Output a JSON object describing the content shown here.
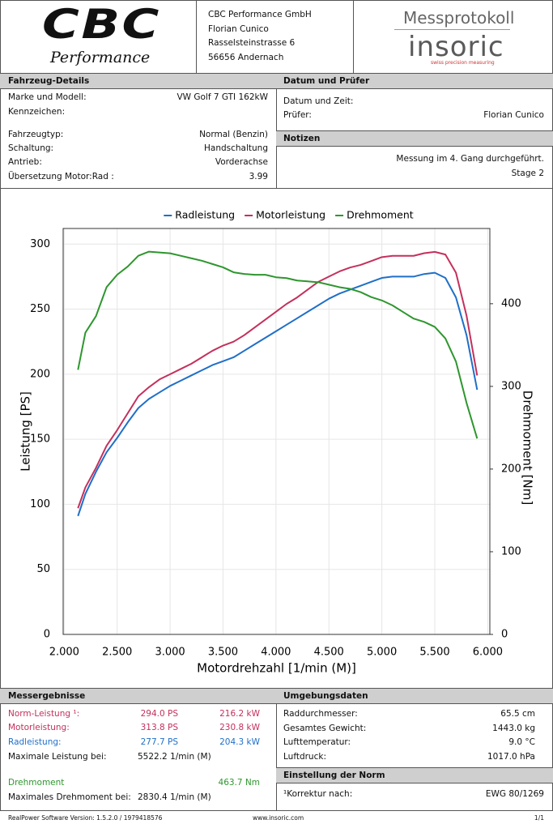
{
  "header": {
    "logo_main": "CBC",
    "logo_sub": "Performance",
    "address": [
      "CBC Performance GmbH",
      "Florian Cunico",
      "Rasselsteinstrasse 6",
      "56656 Andernach"
    ],
    "protocol_title": "Messprotokoll",
    "brand": "insoric",
    "brand_tagline": "swiss precision measuring"
  },
  "vehicle": {
    "title": "Fahrzeug-Details",
    "rows": [
      [
        "Marke und Modell:",
        "VW Golf 7 GTI 162kW"
      ],
      [
        "Kennzeichen:"
      ],
      [
        "Fahrzeugtyp:",
        "Normal (Benzin)"
      ],
      [
        "Schaltung:",
        "Handschaltung"
      ],
      [
        "Antrieb:",
        "Vorderachse"
      ],
      [
        "Übersetzung Motor:Rad :",
        "3.99"
      ]
    ]
  },
  "date": {
    "title": "Datum und Prüfer",
    "rows": [
      [
        "Datum und Zeit:"
      ],
      [
        "Prüfer:",
        "Florian Cunico"
      ]
    ]
  },
  "notes": {
    "title": "Notizen",
    "lines": [
      "Messung im 4. Gang durchgeführt.",
      "Stage 2"
    ]
  },
  "chart_data": {
    "type": "line",
    "x_label": "Motordrehzahl [1/min (M)]",
    "y_label": "Leistung [PS]",
    "y2_label": "Drehmoment [Nm]",
    "x": [
      2.13,
      2.2,
      2.3,
      2.4,
      2.5,
      2.6,
      2.7,
      2.8,
      2.9,
      3.0,
      3.1,
      3.2,
      3.3,
      3.4,
      3.5,
      3.6,
      3.7,
      3.8,
      3.9,
      4.0,
      4.1,
      4.2,
      4.3,
      4.4,
      4.5,
      4.6,
      4.7,
      4.8,
      4.9,
      5.0,
      5.1,
      5.2,
      5.3,
      5.4,
      5.5,
      5.6,
      5.7,
      5.8,
      5.9
    ],
    "series": [
      {
        "name": "Radleistung",
        "color": "#1f6fc8",
        "values": [
          91,
          108,
          125,
          140,
          151,
          163,
          174,
          181,
          186,
          191,
          195,
          199,
          203,
          207,
          210,
          213,
          218,
          223,
          228,
          233,
          238,
          243,
          248,
          253,
          258,
          262,
          265,
          268,
          271,
          274,
          275,
          275,
          275,
          277,
          278,
          274,
          259,
          230,
          188
        ]
      },
      {
        "name": "Motorleistung",
        "color": "#c4305c",
        "values": [
          97,
          113,
          128,
          145,
          157,
          170,
          183,
          190,
          196,
          200,
          204,
          208,
          213,
          218,
          222,
          225,
          230,
          236,
          242,
          248,
          254,
          259,
          265,
          271,
          275,
          279,
          282,
          284,
          287,
          290,
          291,
          291,
          291,
          293,
          294,
          292,
          278,
          245,
          199
        ]
      },
      {
        "name": "Drehmoment",
        "color": "#2e962e",
        "axis": "y2",
        "values": [
          320,
          365,
          385,
          420,
          435,
          445,
          458,
          463,
          462,
          461,
          458,
          455,
          452,
          448,
          444,
          438,
          436,
          435,
          435,
          432,
          431,
          428,
          427,
          426,
          423,
          420,
          418,
          414,
          408,
          404,
          398,
          390,
          382,
          378,
          372,
          358,
          330,
          280,
          237
        ]
      }
    ],
    "xlim": [
      1.99,
      6.02
    ],
    "xticks": [
      {
        "value": 2.0,
        "label": "2.000"
      },
      {
        "value": 2.5,
        "label": "2.500"
      },
      {
        "value": 3.0,
        "label": "3.000"
      },
      {
        "value": 3.5,
        "label": "3.500"
      },
      {
        "value": 4.0,
        "label": "4.000"
      },
      {
        "value": 4.5,
        "label": "4.500"
      },
      {
        "value": 5.0,
        "label": "5.000"
      },
      {
        "value": 5.5,
        "label": "5.500"
      },
      {
        "value": 6.0,
        "label": "6.000"
      }
    ],
    "ylim": [
      0,
      312
    ],
    "yticks": [
      0,
      50,
      100,
      150,
      200,
      250,
      300
    ],
    "y2lim": [
      0,
      491
    ],
    "y2ticks": [
      0,
      100,
      200,
      300,
      400
    ],
    "grid": true,
    "legend": "top"
  },
  "results": {
    "title": "Messergebnisse",
    "rows": [
      {
        "label": "Norm-Leistung ¹:",
        "c1": "294.0 PS",
        "c2": "216.2 kW",
        "color": "#c4305c"
      },
      {
        "label": "Motorleistung:",
        "c1": "313.8 PS",
        "c2": "230.8 kW",
        "color": "#c4305c"
      },
      {
        "label": "Radleistung:",
        "c1": "277.7 PS",
        "c2": "204.3 kW",
        "color": "#1f6fc8"
      },
      {
        "label": "Maximale Leistung bei:",
        "c1": "5522.2 1/min (M)"
      },
      {
        "label": "Drehmoment",
        "c2": "463.7 Nm",
        "color": "#2e962e"
      },
      {
        "label": "Maximales Drehmoment bei:",
        "c1": "2830.4 1/min (M)"
      }
    ]
  },
  "environment": {
    "title": "Umgebungsdaten",
    "rows": [
      [
        "Raddurchmesser:",
        "65.5 cm"
      ],
      [
        "Gesamtes Gewicht:",
        "1443.0 kg"
      ],
      [
        "Lufttemperatur:",
        "9.0 °C"
      ],
      [
        "Luftdruck:",
        "1017.0 hPa"
      ]
    ]
  },
  "norm": {
    "title": "Einstellung der Norm",
    "rows": [
      [
        "¹Korrektur nach:",
        "EWG 80/1269"
      ]
    ]
  },
  "footer": {
    "version": "RealPower Software Version: 1.5.2.0 / 1979418576",
    "url": "www.insoric.com",
    "page": "1/1"
  }
}
